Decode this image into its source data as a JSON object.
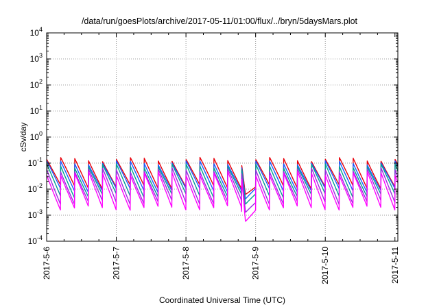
{
  "chart_data": {
    "type": "line",
    "title": "/data/run/goesPlots/archive/2017-05-11/01:00/flux/../bryn/5daysMars.plot",
    "xlabel": "Coordinated Universal Time (UTC)",
    "ylabel": "cSv/day",
    "yscale": "log",
    "ylim": [
      0.0001,
      10000
    ],
    "xlim": [
      "2017-05-06 00:00",
      "2017-05-11 01:00"
    ],
    "grid": true,
    "x_ticks": [
      "2017-5-6",
      "2017-5-7",
      "2017-5-8",
      "2017-5-9",
      "2017-5-10",
      "2017-5-11"
    ],
    "y_ticks": [
      {
        "base": "10",
        "exp": "-4"
      },
      {
        "base": "10",
        "exp": "-3"
      },
      {
        "base": "10",
        "exp": "-2"
      },
      {
        "base": "10",
        "exp": "-1"
      },
      {
        "base": "10",
        "exp": "0"
      },
      {
        "base": "10",
        "exp": "1"
      },
      {
        "base": "10",
        "exp": "2"
      },
      {
        "base": "10",
        "exp": "3"
      },
      {
        "base": "10",
        "exp": "4"
      }
    ],
    "pattern": {
      "period_hours": 4.8,
      "gap": {
        "start": "2017-05-08 15:00",
        "end": "2017-05-08 23:00"
      },
      "dip": {
        "start": "2017-05-08 19:00",
        "end": "2017-05-09 00:00",
        "min_day": "2017-05-08 20:30"
      }
    },
    "series": [
      {
        "color": "#e8000b",
        "peak": 0.14,
        "trough": 0.012
      },
      {
        "color": "#1a5cff",
        "peak": 0.105,
        "trough": 0.009
      },
      {
        "color": "#00a090",
        "peak": 0.08,
        "trough": 0.0055
      },
      {
        "color": "#9a2be0",
        "peak": 0.055,
        "trough": 0.003
      },
      {
        "color": "#ff00ff",
        "peak": 0.04,
        "trough": 0.0018
      }
    ]
  }
}
